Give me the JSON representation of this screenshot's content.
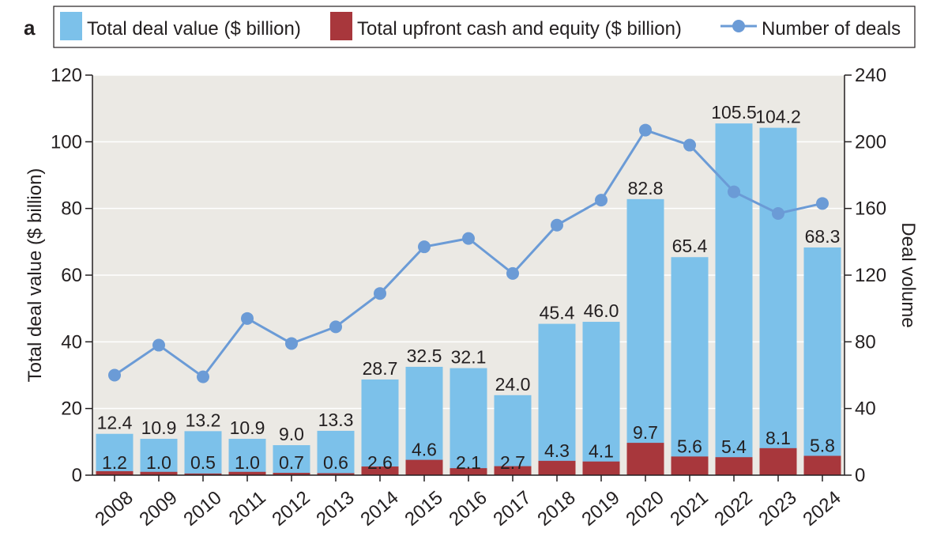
{
  "panel_label": "a",
  "legend": {
    "deal_value": "Total deal value ($ billion)",
    "upfront": "Total upfront cash and equity ($ billion)",
    "deals": "Number of deals"
  },
  "colors": {
    "deal_value": "#7cc1ea",
    "upfront": "#a8373c",
    "deals": "#6b9bd6",
    "plot_bg": "#ebe9e4",
    "grid": "#ffffff"
  },
  "chart_data": {
    "type": "bar",
    "categories": [
      "2008",
      "2009",
      "2010",
      "2011",
      "2012",
      "2013",
      "2014",
      "2015",
      "2016",
      "2017",
      "2018",
      "2019",
      "2020",
      "2021",
      "2022",
      "2023",
      "2024"
    ],
    "series": [
      {
        "name": "Total deal value ($ billion)",
        "type": "bar",
        "axis": "left",
        "values": [
          12.4,
          10.9,
          13.2,
          10.9,
          9.0,
          13.3,
          28.7,
          32.5,
          32.1,
          24.0,
          45.4,
          46.0,
          82.8,
          65.4,
          105.5,
          104.2,
          68.3
        ]
      },
      {
        "name": "Total upfront cash and equity ($ billion)",
        "type": "bar",
        "axis": "left",
        "values": [
          1.2,
          1.0,
          0.5,
          1.0,
          0.7,
          0.6,
          2.6,
          4.6,
          2.1,
          2.7,
          4.3,
          4.1,
          9.7,
          5.6,
          5.4,
          8.1,
          5.8
        ]
      },
      {
        "name": "Number of deals",
        "type": "line",
        "axis": "right",
        "values": [
          60,
          78,
          59,
          94,
          79,
          89,
          109,
          137,
          142,
          121,
          150,
          165,
          207,
          198,
          170,
          157,
          163
        ]
      }
    ],
    "value_labels": [
      "12.4",
      "10.9",
      "13.2",
      "10.9",
      "9.0",
      "13.3",
      "28.7",
      "32.5",
      "32.1",
      "24.0",
      "45.4",
      "46.0",
      "82.8",
      "65.4",
      "105.5",
      "104.2",
      "68.3"
    ],
    "upfront_labels": [
      "1.2",
      "1.0",
      "0.5",
      "1.0",
      "0.7",
      "0.6",
      "2.6",
      "4.6",
      "2.1",
      "2.7",
      "4.3",
      "4.1",
      "9.7",
      "5.6",
      "5.4",
      "8.1",
      "5.8"
    ],
    "ylabel": "Total deal value ($ billion)",
    "y2label": "Deal volume",
    "ylim": [
      0,
      120
    ],
    "y2lim": [
      0,
      240
    ],
    "yticks": [
      "0",
      "20",
      "40",
      "60",
      "80",
      "100",
      "120"
    ],
    "y2ticks": [
      "0",
      "40",
      "80",
      "120",
      "160",
      "200",
      "240"
    ],
    "grid": true,
    "legend_position": "top"
  }
}
